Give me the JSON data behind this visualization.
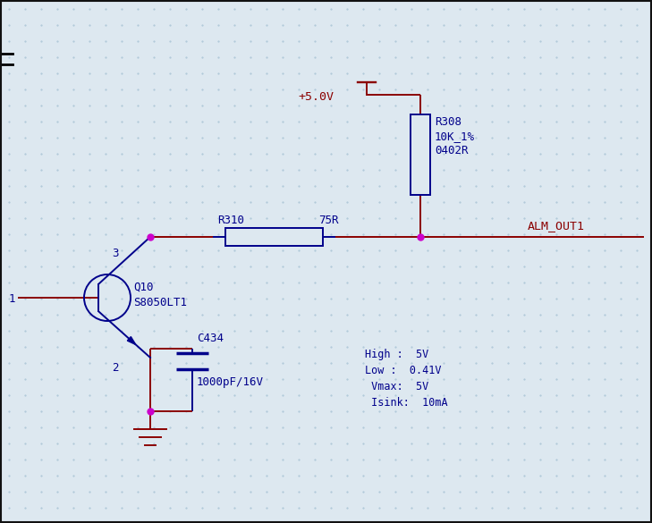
{
  "bg_color": "#dde8f0",
  "grid_color": "#afc8d8",
  "wire_color": "#8b0000",
  "component_color": "#00008b",
  "net_label_color": "#8b0000",
  "junction_color": "#cc00cc",
  "border_color": "#111111",
  "power_label": "+5.0V",
  "net_label": "ALM_OUT1",
  "r308_label": "R308",
  "r308_val": "10K_1%",
  "r308_pkg": "0402R",
  "r310_label": "R310",
  "r310_val": "75R",
  "c434_label": "C434",
  "c434_val": "1000pF/16V",
  "q10_label": "Q10",
  "q10_val": "S8050LT1",
  "pin1": "1",
  "pin2": "2",
  "pin3": "3",
  "specs_line1": "High :  5V",
  "specs_line2": "Low :  0.41V",
  "specs_line3": " Vmax:  5V",
  "specs_line4": " Isink:  10mA"
}
